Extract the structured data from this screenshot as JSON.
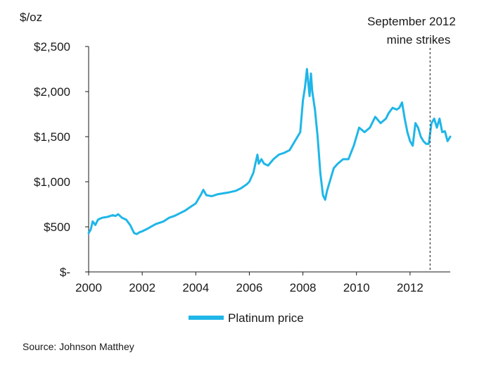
{
  "source": "Source: Johnson Matthey",
  "chart_data": {
    "type": "line",
    "unit_label": "$/oz",
    "x_ticks": [
      "2000",
      "2002",
      "2004",
      "2006",
      "2008",
      "2010",
      "2012"
    ],
    "y_ticks": [
      {
        "value": 0,
        "label": "$-"
      },
      {
        "value": 500,
        "label": "$500"
      },
      {
        "value": 1000,
        "label": "$1,000"
      },
      {
        "value": 1500,
        "label": "$1,500"
      },
      {
        "value": 2000,
        "label": "$2,000"
      },
      {
        "value": 2500,
        "label": "$2,500"
      }
    ],
    "xlim": [
      2000,
      2013.5
    ],
    "ylim": [
      0,
      2500
    ],
    "grid": false,
    "legend_position": "bottom-center",
    "annotation": {
      "lines": [
        "September 2012",
        "mine strikes"
      ],
      "x": 2012.75
    },
    "series": [
      {
        "name": "Platinum price",
        "color": "#1fb6e8",
        "x": [
          2000.0,
          2000.08,
          2000.15,
          2000.25,
          2000.35,
          2000.5,
          2000.7,
          2000.9,
          2001.0,
          2001.1,
          2001.25,
          2001.4,
          2001.55,
          2001.7,
          2001.8,
          2001.9,
          2002.0,
          2002.2,
          2002.5,
          2002.8,
          2003.0,
          2003.2,
          2003.4,
          2003.6,
          2003.8,
          2004.0,
          2004.2,
          2004.28,
          2004.4,
          2004.6,
          2004.8,
          2005.0,
          2005.2,
          2005.5,
          2005.7,
          2005.9,
          2006.0,
          2006.15,
          2006.3,
          2006.35,
          2006.45,
          2006.55,
          2006.7,
          2006.9,
          2007.1,
          2007.3,
          2007.5,
          2007.7,
          2007.9,
          2008.0,
          2008.08,
          2008.15,
          2008.2,
          2008.25,
          2008.3,
          2008.35,
          2008.45,
          2008.55,
          2008.65,
          2008.75,
          2008.83,
          2008.9,
          2009.0,
          2009.15,
          2009.3,
          2009.5,
          2009.7,
          2009.9,
          2010.0,
          2010.1,
          2010.3,
          2010.5,
          2010.7,
          2010.9,
          2011.1,
          2011.2,
          2011.35,
          2011.5,
          2011.6,
          2011.7,
          2011.8,
          2011.9,
          2012.0,
          2012.1,
          2012.2,
          2012.3,
          2012.4,
          2012.5,
          2012.6,
          2012.7,
          2012.8,
          2012.9,
          2013.0,
          2013.1,
          2013.2,
          2013.3,
          2013.4,
          2013.5
        ],
        "y": [
          430,
          470,
          560,
          520,
          580,
          600,
          610,
          630,
          620,
          640,
          600,
          580,
          520,
          430,
          420,
          440,
          450,
          480,
          530,
          560,
          600,
          620,
          650,
          680,
          720,
          760,
          860,
          910,
          850,
          840,
          860,
          870,
          880,
          900,
          930,
          970,
          1000,
          1100,
          1300,
          1200,
          1250,
          1200,
          1180,
          1250,
          1300,
          1320,
          1350,
          1450,
          1550,
          1900,
          2050,
          2250,
          2100,
          1950,
          2200,
          2000,
          1800,
          1500,
          1100,
          850,
          800,
          900,
          1000,
          1150,
          1200,
          1250,
          1250,
          1400,
          1500,
          1600,
          1550,
          1600,
          1720,
          1650,
          1700,
          1760,
          1820,
          1800,
          1820,
          1880,
          1700,
          1550,
          1450,
          1400,
          1650,
          1600,
          1500,
          1450,
          1420,
          1420,
          1650,
          1700,
          1600,
          1700,
          1550,
          1560,
          1450,
          1500
        ]
      }
    ]
  }
}
